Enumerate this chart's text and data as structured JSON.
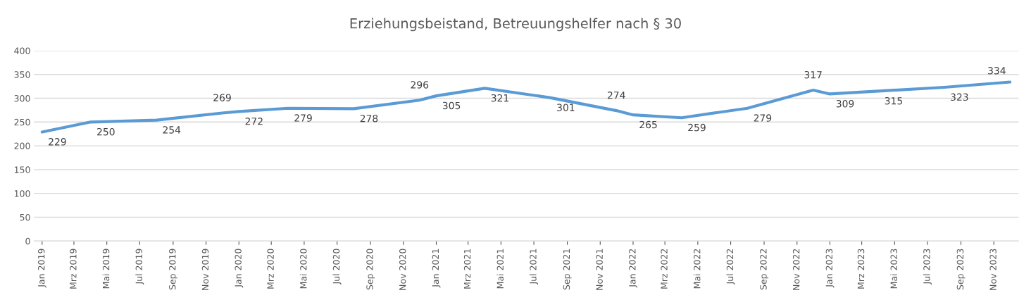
{
  "chart_data": {
    "type": "line",
    "title": "Erziehungsbeistand, Betreuungshelfer nach § 30",
    "x": [
      "2019-01",
      "2019-04",
      "2019-08",
      "2019-12",
      "2020-01",
      "2020-04",
      "2020-08",
      "2020-12",
      "2021-01",
      "2021-04",
      "2021-08",
      "2021-12",
      "2022-01",
      "2022-04",
      "2022-08",
      "2022-12",
      "2023-01",
      "2023-04",
      "2023-08",
      "2023-12"
    ],
    "series": [
      {
        "color": "#5b9bd5",
        "values": [
          229,
          250,
          254,
          269,
          272,
          279,
          278,
          296,
          305,
          321,
          301,
          274,
          265,
          259,
          279,
          317,
          309,
          315,
          323,
          334
        ]
      }
    ],
    "data_labels": true,
    "ylim": [
      0,
      400
    ],
    "yticks": [
      0,
      50,
      100,
      150,
      200,
      250,
      300,
      350,
      400
    ],
    "xlim": [
      "2018-12-17",
      "2023-12-17"
    ],
    "xticks": [
      {
        "value": "2019-01",
        "label": "Jan 2019"
      },
      {
        "value": "2019-03",
        "label": "Mrz 2019"
      },
      {
        "value": "2019-05",
        "label": "Mai 2019"
      },
      {
        "value": "2019-07",
        "label": "Jul 2019"
      },
      {
        "value": "2019-09",
        "label": "Sep 2019"
      },
      {
        "value": "2019-11",
        "label": "Nov 2019"
      },
      {
        "value": "2020-01",
        "label": "Jan 2020"
      },
      {
        "value": "2020-03",
        "label": "Mrz 2020"
      },
      {
        "value": "2020-05",
        "label": "Mai 2020"
      },
      {
        "value": "2020-07",
        "label": "Jul 2020"
      },
      {
        "value": "2020-09",
        "label": "Sep 2020"
      },
      {
        "value": "2020-11",
        "label": "Nov 2020"
      },
      {
        "value": "2021-01",
        "label": "Jan 2021"
      },
      {
        "value": "2021-03",
        "label": "Mrz 2021"
      },
      {
        "value": "2021-05",
        "label": "Mai 2021"
      },
      {
        "value": "2021-07",
        "label": "Jul 2021"
      },
      {
        "value": "2021-09",
        "label": "Sep 2021"
      },
      {
        "value": "2021-11",
        "label": "Nov 2021"
      },
      {
        "value": "2022-01",
        "label": "Jan 2022"
      },
      {
        "value": "2022-03",
        "label": "Mrz 2022"
      },
      {
        "value": "2022-05",
        "label": "Mai 2022"
      },
      {
        "value": "2022-07",
        "label": "Jul 2022"
      },
      {
        "value": "2022-09",
        "label": "Sep 2022"
      },
      {
        "value": "2022-11",
        "label": "Nov 2022"
      },
      {
        "value": "2023-01",
        "label": "Jan 2023"
      },
      {
        "value": "2023-03",
        "label": "Mrz 2023"
      },
      {
        "value": "2023-05",
        "label": "Mai 2023"
      },
      {
        "value": "2023-07",
        "label": "Jul 2023"
      },
      {
        "value": "2023-09",
        "label": "Sep 2023"
      },
      {
        "value": "2023-11",
        "label": "Nov 2023"
      }
    ],
    "grid": "y",
    "legend": false,
    "marker": "none",
    "line_style": "solid"
  }
}
